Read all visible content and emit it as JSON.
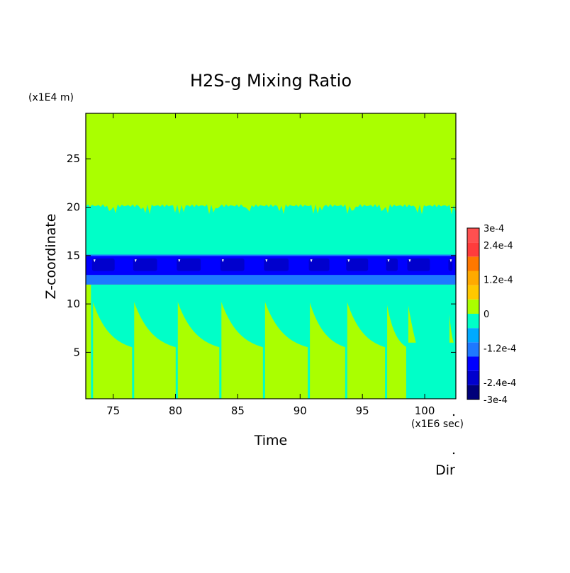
{
  "chart_data": {
    "type": "heatmap",
    "title": "H2S-g Mixing Ratio",
    "xlabel": "Time",
    "ylabel": "Z-coordinate",
    "x_unit": "(x1E6 sec)",
    "y_unit": "(x1E4 m)",
    "xlim": [
      72.8,
      102.5
    ],
    "ylim": [
      0.2,
      29.7
    ],
    "xticks": [
      75,
      80,
      85,
      90,
      95,
      100
    ],
    "yticks": [
      5,
      10,
      15,
      20,
      25
    ],
    "colorbar": {
      "min": -0.0003,
      "max": 0.0003,
      "levels": 12,
      "labels": [
        "3e-4",
        "2.4e-4",
        "1.2e-4",
        "0",
        "-1.2e-4",
        "-2.4e-4",
        "-3e-4"
      ],
      "label_values": [
        0.0003,
        0.00024,
        0.00012,
        0,
        -0.00012,
        -0.00024,
        -0.0003
      ],
      "colors": [
        "#00007a",
        "#0000cd",
        "#0000ff",
        "#1e78ff",
        "#00aaff",
        "#00ffc8",
        "#aaff00",
        "#ffc800",
        "#ffaa00",
        "#ff7800",
        "#ff3c3c",
        "#ff5050"
      ]
    },
    "colors": {
      "background": "#aaff00",
      "mid_band": "#00ffc8",
      "blue": "#1e78ff",
      "dark_blue": "#0000ff",
      "deepest": "#0000cd"
    },
    "bands": {
      "upper_interface_z": 20.3,
      "lower_interface_z": 15.0,
      "deep_layer_bottom_z": 13.0,
      "mid_layer_bottom_z": 12.0
    },
    "cycles": [
      73.3,
      76.6,
      80.1,
      83.6,
      87.1,
      90.7,
      93.7,
      96.9,
      98.6,
      101.9
    ],
    "extra_label": "Dir"
  }
}
